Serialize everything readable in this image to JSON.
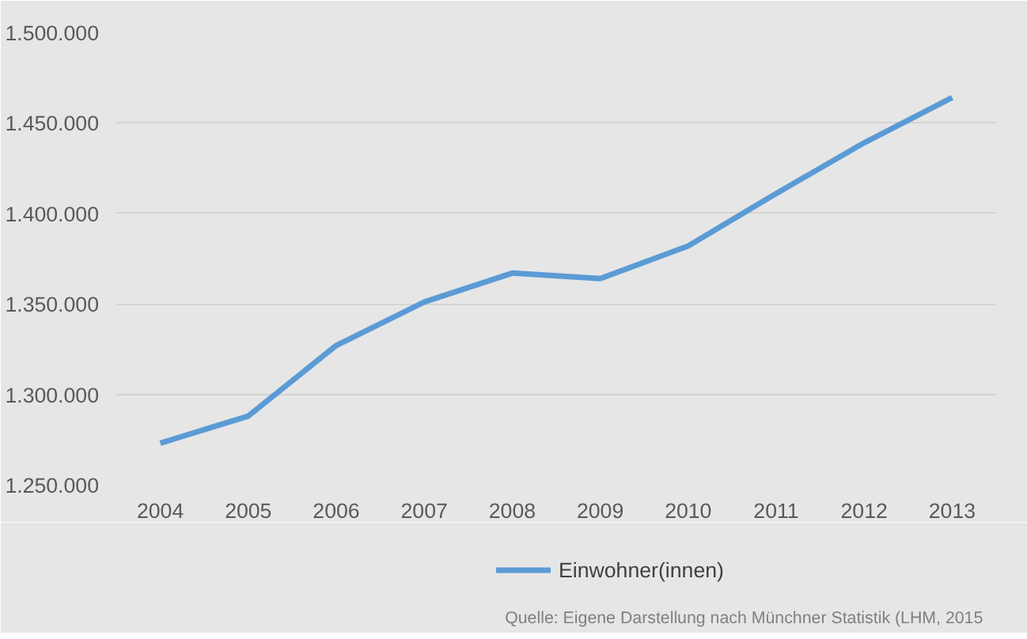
{
  "chart_data": {
    "type": "line",
    "categories": [
      "2004",
      "2005",
      "2006",
      "2007",
      "2008",
      "2009",
      "2010",
      "2011",
      "2012",
      "2013"
    ],
    "series": [
      {
        "name": "Einwohner(innen)",
        "color": "#5b9bd5",
        "values": [
          1273000,
          1288000,
          1327000,
          1351000,
          1367000,
          1364000,
          1382000,
          1411000,
          1439000,
          1464000
        ]
      }
    ],
    "ylim": [
      1250000,
      1500000
    ],
    "yticks": [
      {
        "value": 1250000,
        "label": "1.250.000"
      },
      {
        "value": 1300000,
        "label": "1.300.000"
      },
      {
        "value": 1350000,
        "label": "1.350.000"
      },
      {
        "value": 1400000,
        "label": "1.400.000"
      },
      {
        "value": 1450000,
        "label": "1.450.000"
      },
      {
        "value": 1500000,
        "label": "1.500.000"
      }
    ],
    "grid": "y",
    "legend": "bottom",
    "marker": "none",
    "line_style": "solid",
    "annotations": [
      "Quelle: Eigene Darstellung nach Münchner Statistik (LHM, 2015"
    ]
  }
}
